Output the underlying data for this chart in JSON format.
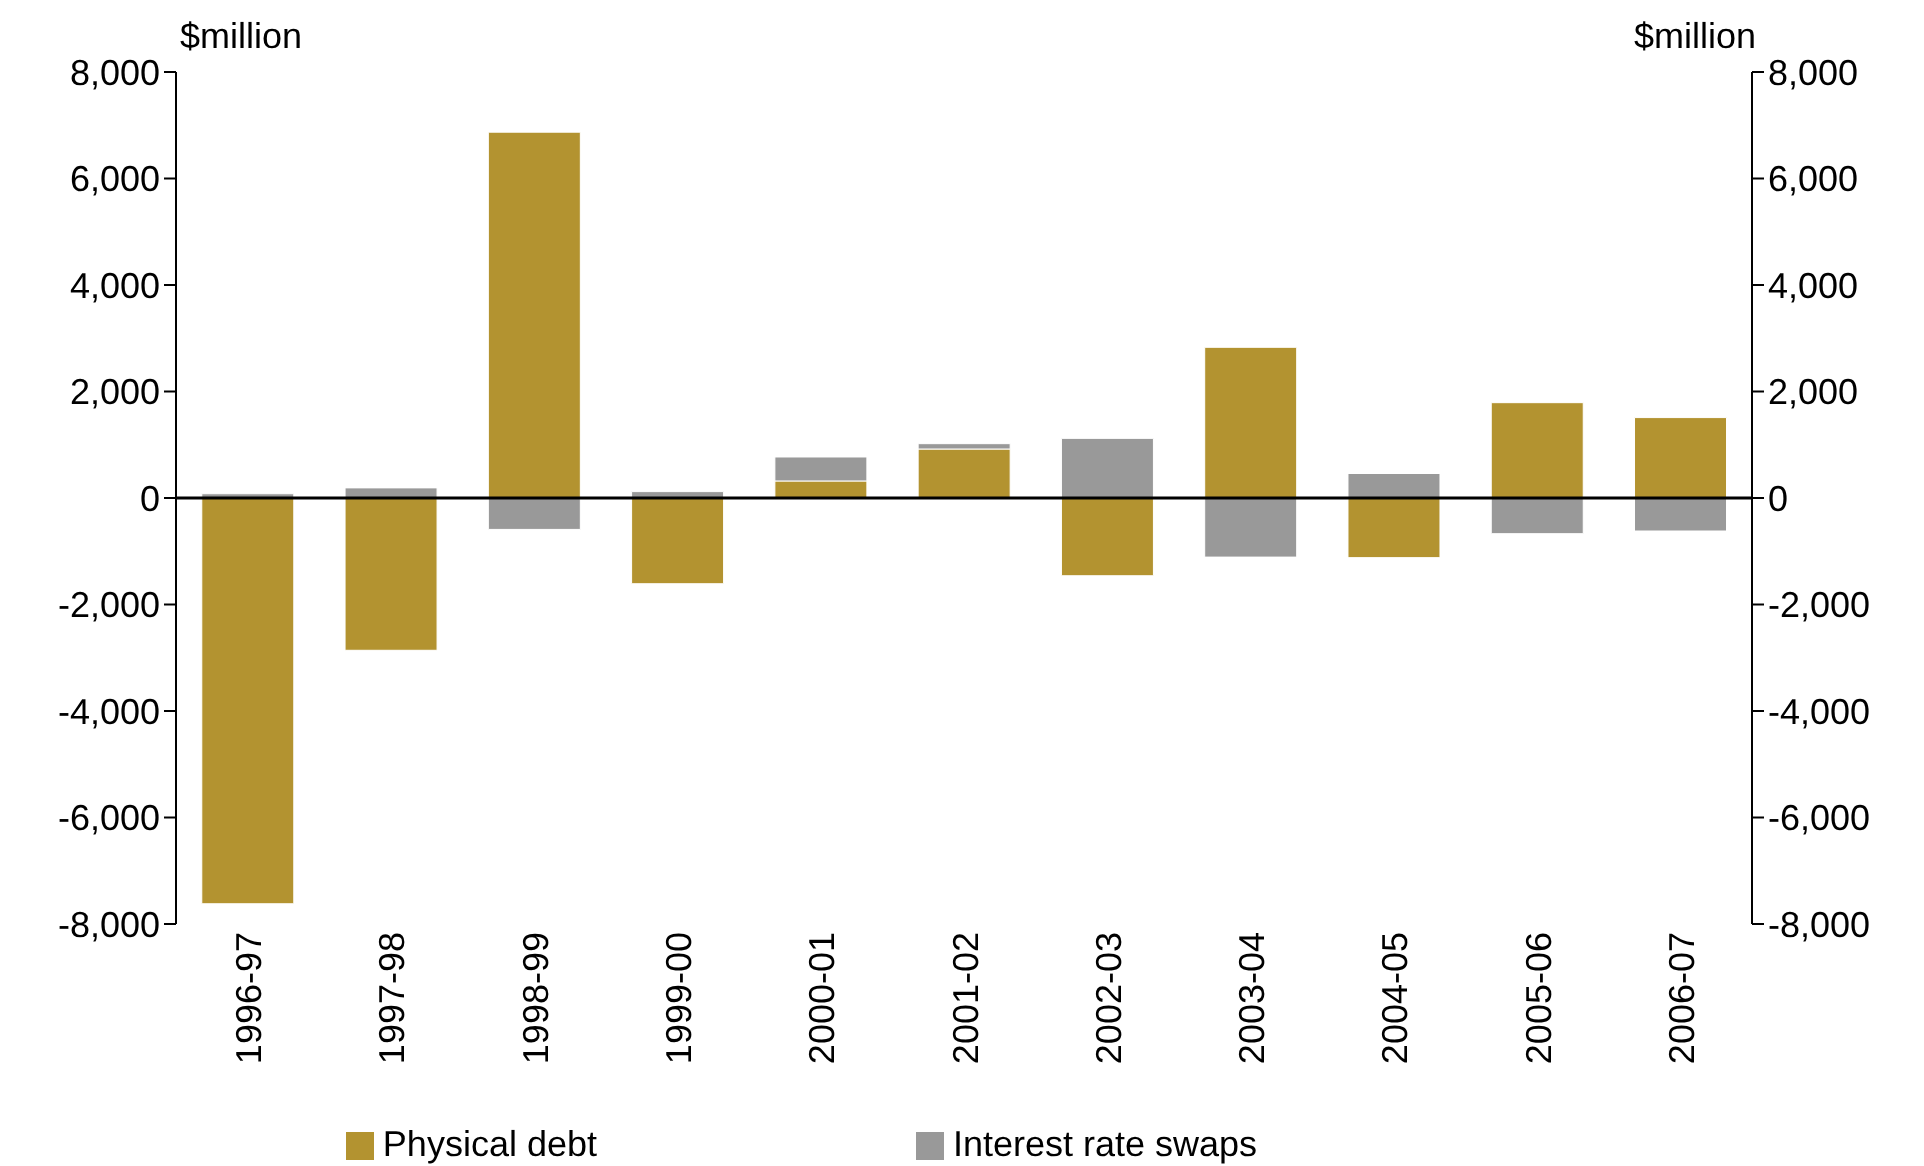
{
  "chart_data": {
    "type": "bar",
    "stacked": true,
    "ylabel": "$million",
    "y2label": "$million",
    "categories": [
      "1996-97",
      "1997-98",
      "1998-99",
      "1999-00",
      "2000-01",
      "2001-02",
      "2002-03",
      "2003-04",
      "2004-05",
      "2005-06",
      "2006-07"
    ],
    "series": [
      {
        "name": "Physical debt",
        "color": "#b39330",
        "values": [
          -7620,
          -2860,
          6870,
          -1610,
          320,
          920,
          -1460,
          2830,
          -1120,
          1790,
          1510
        ]
      },
      {
        "name": "Interest rate swaps",
        "color": "#999999",
        "values": [
          80,
          190,
          -590,
          120,
          450,
          100,
          1120,
          -1110,
          460,
          -670,
          -620
        ]
      }
    ],
    "ylim": [
      -8000,
      8000
    ],
    "yticks": [
      {
        "value": -8000,
        "label": "-8,000"
      },
      {
        "value": -6000,
        "label": "-6,000"
      },
      {
        "value": -4000,
        "label": "-4,000"
      },
      {
        "value": -2000,
        "label": "-2,000"
      },
      0,
      {
        "value": 2000,
        "label": "2,000"
      },
      {
        "value": 4000,
        "label": "4,000"
      },
      {
        "value": 6000,
        "label": "6,000"
      },
      {
        "value": 8000,
        "label": "8,000"
      }
    ],
    "y2lim": [
      -8000,
      8000
    ],
    "y2ticks": [
      {
        "value": -8000,
        "label": "-8,000"
      },
      {
        "value": -6000,
        "label": "-6,000"
      },
      {
        "value": -4000,
        "label": "-4,000"
      },
      {
        "value": -2000,
        "label": "-2,000"
      },
      0,
      {
        "value": 2000,
        "label": "2,000"
      },
      {
        "value": 4000,
        "label": "4,000"
      },
      {
        "value": 6000,
        "label": "6,000"
      },
      {
        "value": 8000,
        "label": "8,000"
      }
    ],
    "ref_lines": [
      {
        "axis": "y",
        "value": 0,
        "color": "#000000"
      }
    ],
    "legend": "bottom"
  }
}
